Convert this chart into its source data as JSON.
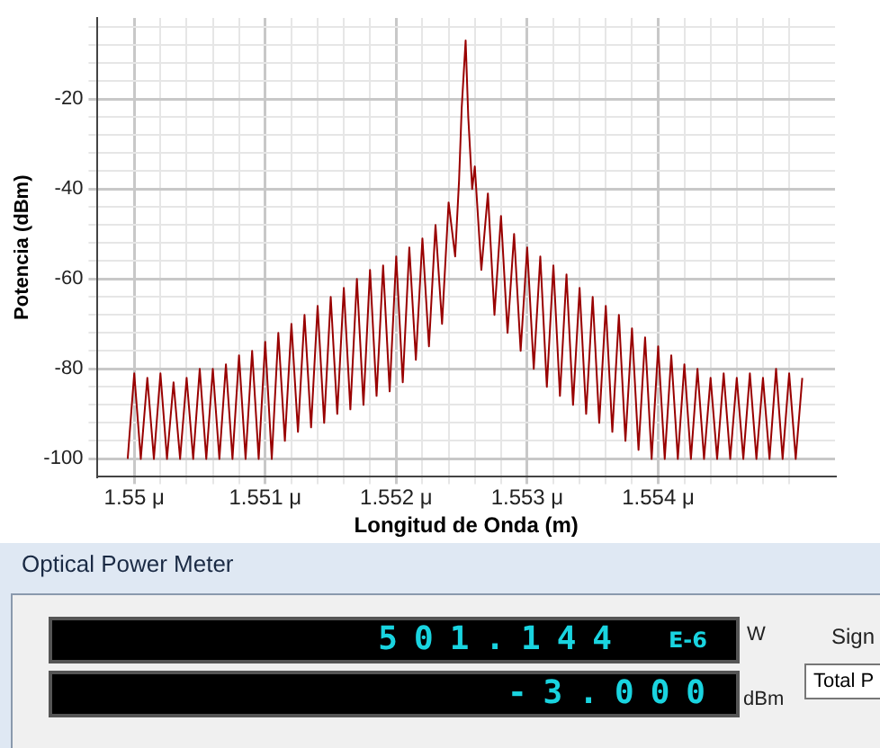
{
  "chart_data": {
    "type": "line",
    "xlabel": "Longitud de Onda (m)",
    "ylabel": "Potencia (dBm)",
    "xlim": [
      1.54972,
      1.55535
    ],
    "ylim": [
      -104,
      -2
    ],
    "xticks": [
      {
        "value": 1.55,
        "label": "1.55 μ"
      },
      {
        "value": 1.5502,
        "label": null
      },
      {
        "value": 1.5504,
        "label": null
      },
      {
        "value": 1.5506,
        "label": null
      },
      {
        "value": 1.5508,
        "label": null
      },
      {
        "value": 1.551,
        "label": "1.551 μ"
      },
      {
        "value": 1.5512,
        "label": null
      },
      {
        "value": 1.5514,
        "label": null
      },
      {
        "value": 1.5516,
        "label": null
      },
      {
        "value": 1.5518,
        "label": null
      },
      {
        "value": 1.552,
        "label": "1.552 μ"
      },
      {
        "value": 1.5522,
        "label": null
      },
      {
        "value": 1.5524,
        "label": null
      },
      {
        "value": 1.5526,
        "label": null
      },
      {
        "value": 1.5528,
        "label": null
      },
      {
        "value": 1.553,
        "label": "1.553 μ"
      },
      {
        "value": 1.5532,
        "label": null
      },
      {
        "value": 1.5534,
        "label": null
      },
      {
        "value": 1.5536,
        "label": null
      },
      {
        "value": 1.5538,
        "label": null
      },
      {
        "value": 1.554,
        "label": "1.554 μ"
      },
      {
        "value": 1.5542,
        "label": null
      },
      {
        "value": 1.5544,
        "label": null
      },
      {
        "value": 1.5546,
        "label": null
      },
      {
        "value": 1.5548,
        "label": null
      },
      {
        "value": 1.555,
        "label": null
      }
    ],
    "yticks": [
      -100,
      {
        "value": -96,
        "label": null
      },
      {
        "value": -92,
        "label": null
      },
      {
        "value": -88,
        "label": null
      },
      {
        "value": -84,
        "label": null
      },
      -80,
      {
        "value": -76,
        "label": null
      },
      {
        "value": -72,
        "label": null
      },
      {
        "value": -68,
        "label": null
      },
      {
        "value": -64,
        "label": null
      },
      -60,
      {
        "value": -56,
        "label": null
      },
      {
        "value": -52,
        "label": null
      },
      {
        "value": -48,
        "label": null
      },
      {
        "value": -44,
        "label": null
      },
      -40,
      {
        "value": -36,
        "label": null
      },
      {
        "value": -32,
        "label": null
      },
      {
        "value": -28,
        "label": null
      },
      {
        "value": -24,
        "label": null
      },
      -20,
      {
        "value": -16,
        "label": null
      },
      {
        "value": -12,
        "label": null
      },
      {
        "value": -8,
        "label": null
      },
      {
        "value": -4,
        "label": null
      }
    ],
    "grid": true,
    "legend": false,
    "marker": "none",
    "line_style": "solid",
    "series": [
      {
        "color": "#990000",
        "x": [
          1.54995,
          1.55,
          1.55005,
          1.5501,
          1.55015,
          1.5502,
          1.55025,
          1.5503,
          1.55035,
          1.5504,
          1.55045,
          1.5505,
          1.55055,
          1.5506,
          1.55065,
          1.5507,
          1.55075,
          1.5508,
          1.55085,
          1.5509,
          1.55095,
          1.551,
          1.55105,
          1.5511,
          1.55115,
          1.5512,
          1.55125,
          1.5513,
          1.55135,
          1.5514,
          1.55145,
          1.5515,
          1.55155,
          1.5516,
          1.55165,
          1.5517,
          1.55175,
          1.5518,
          1.55185,
          1.5519,
          1.55195,
          1.552,
          1.55205,
          1.5521,
          1.55215,
          1.5522,
          1.55225,
          1.5523,
          1.55235,
          1.5524,
          1.55245,
          1.55248,
          1.5525,
          1.55253,
          1.55255,
          1.55258,
          1.5526,
          1.55265,
          1.5527,
          1.55275,
          1.5528,
          1.55285,
          1.5529,
          1.55295,
          1.553,
          1.55305,
          1.5531,
          1.55315,
          1.5532,
          1.55325,
          1.5533,
          1.55335,
          1.5534,
          1.55345,
          1.5535,
          1.55355,
          1.5536,
          1.55365,
          1.5537,
          1.55375,
          1.5538,
          1.55385,
          1.5539,
          1.55395,
          1.554,
          1.55405,
          1.5541,
          1.55415,
          1.5542,
          1.55425,
          1.5543,
          1.55435,
          1.5544,
          1.55445,
          1.5545,
          1.55455,
          1.5546,
          1.55465,
          1.5547,
          1.55475,
          1.5548,
          1.55485,
          1.5549,
          1.55495,
          1.555,
          1.55505,
          1.5551
        ],
        "values": [
          -100,
          -81,
          -100,
          -82,
          -100,
          -81,
          -100,
          -83,
          -100,
          -82,
          -100,
          -80,
          -100,
          -80,
          -100,
          -79,
          -100,
          -77,
          -100,
          -76,
          -100,
          -74,
          -100,
          -72,
          -96,
          -70,
          -94,
          -68,
          -93,
          -66,
          -92,
          -64,
          -90,
          -62,
          -89,
          -60,
          -88,
          -58,
          -86,
          -57,
          -85,
          -55,
          -83,
          -53,
          -78,
          -51,
          -75,
          -48,
          -70,
          -43,
          -55,
          -38,
          -22,
          -7,
          -24,
          -40,
          -35,
          -58,
          -41,
          -68,
          -46,
          -72,
          -50,
          -76,
          -53,
          -80,
          -55,
          -84,
          -57,
          -86,
          -59,
          -88,
          -62,
          -90,
          -64,
          -92,
          -66,
          -94,
          -68,
          -96,
          -71,
          -98,
          -73,
          -100,
          -75,
          -100,
          -77,
          -100,
          -79,
          -100,
          -80,
          -100,
          -82,
          -100,
          -81,
          -100,
          -82,
          -100,
          -81,
          -100,
          -82,
          -100,
          -80,
          -100,
          -81,
          -100,
          -82
        ]
      }
    ],
    "annotations": [
      "Optical Power Meter",
      "501.144",
      "E-6",
      "W",
      "-3.000",
      "dBm",
      "Sign",
      "Total P"
    ]
  }
}
